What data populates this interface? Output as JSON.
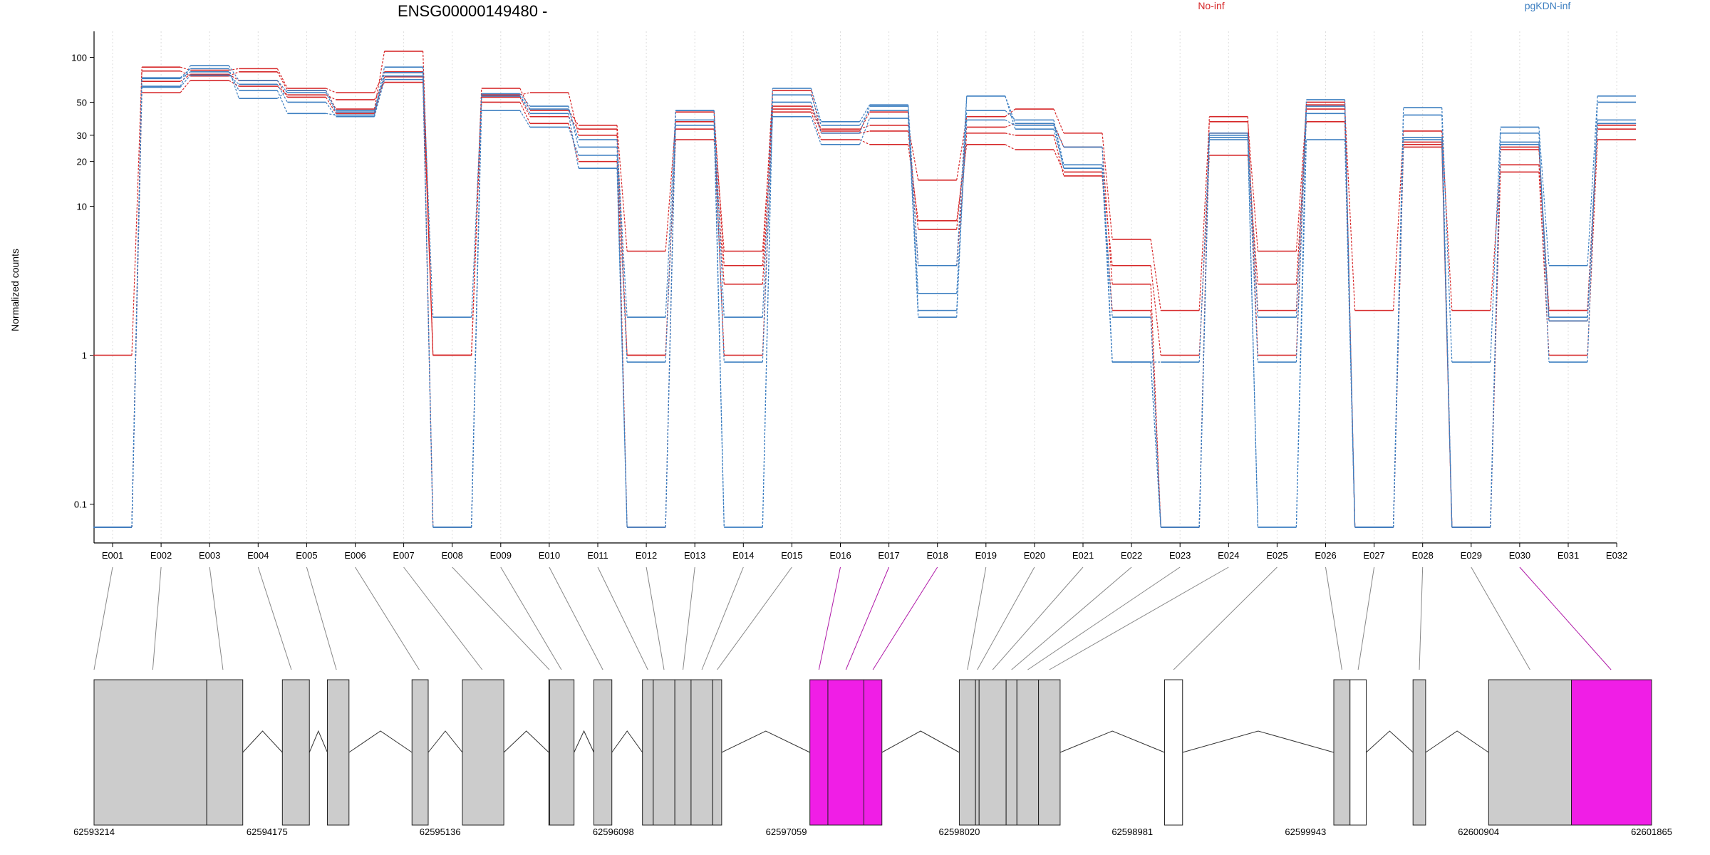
{
  "chart_data": {
    "type": "line",
    "title": "ENSG00000149480 -",
    "ylabel": "Normalized counts",
    "ylim": [
      0.07,
      140
    ],
    "yscale": "log",
    "yticks": [
      "0.1",
      "1",
      "10",
      "20",
      "30",
      "50",
      "100"
    ],
    "grid": "vertical dotted",
    "legend_position": "top-right",
    "categories": [
      "E001",
      "E002",
      "E003",
      "E004",
      "E005",
      "E006",
      "E007",
      "E008",
      "E009",
      "E010",
      "E011",
      "E012",
      "E013",
      "E014",
      "E015",
      "E016",
      "E017",
      "E018",
      "E019",
      "E020",
      "E021",
      "E022",
      "E023",
      "E024",
      "E025",
      "E026",
      "E027",
      "E028",
      "E029",
      "E030",
      "E031",
      "E032"
    ],
    "groups": [
      {
        "name": "No-inf",
        "color": "#d62728",
        "series": [
          {
            "values": [
              1,
              81,
              75,
              80,
              60,
              45,
              110,
              1,
              62,
              44,
              35,
              5,
              37,
              5,
              47,
              33,
              35,
              15,
              40,
              45,
              31,
              6,
              2,
              37,
              5,
              45,
              2,
              32,
              2,
              19,
              2,
              35
            ]
          },
          {
            "values": [
              0.07,
              58,
              70,
              64,
              56,
              52,
              68,
              1,
              56,
              58,
              30,
              1,
              28,
              3,
              43,
              28,
              26,
              8,
              26,
              24,
              17,
              4,
              1,
              22,
              3,
              37,
              0.07,
              25,
              0.07,
              17,
              1,
              28
            ]
          },
          {
            "values": [
              0.07,
              86,
              82,
              84,
              62,
              58,
              80,
              0.07,
              54,
              40,
              33,
              0.07,
              43,
              4,
              60,
              31,
              32,
              7,
              34,
              36,
              25,
              3,
              0.07,
              31,
              2,
              48,
              0.07,
              27,
              0.07,
              25,
              1.7,
              33
            ]
          },
          {
            "values": [
              0.07,
              69,
              77,
              70,
              54,
              42,
              74,
              1,
              50,
              36,
              20,
              1,
              33,
              1,
              45,
              32,
              43,
              4,
              31,
              30,
              16,
              2,
              0.07,
              40,
              1,
              50,
              0.07,
              26,
              0.07,
              24,
              2,
              36
            ]
          }
        ]
      },
      {
        "name": "pgKDN-inf",
        "color": "#3d7fc1",
        "series": [
          {
            "values": [
              0.07,
              64,
              88,
              70,
              58,
              43,
              86,
              1.8,
              55,
              45,
              28,
              1.8,
              44,
              1.8,
              62,
              37,
              48,
              4,
              55,
              36,
              18,
              1.8,
              0.07,
              31,
              1.8,
              52,
              0.07,
              46,
              0.9,
              34,
              4,
              55
            ]
          },
          {
            "values": [
              0.07,
              72,
              80,
              60,
              42,
              41,
              79,
              0.07,
              44,
              34,
              22,
              0.07,
              38,
              0.9,
              40,
              26,
              39,
              2.6,
              38,
              35,
              25,
              0.9,
              0.07,
              29,
              0.9,
              42,
              0.07,
              41,
              0.07,
              31,
              0.9,
              50
            ]
          },
          {
            "values": [
              0.07,
              73,
              84,
              53,
              60,
              44,
              75,
              0.07,
              57,
              47,
              25,
              0.9,
              35,
              0.07,
              50,
              31,
              47,
              2,
              44,
              38,
              19,
              0.9,
              0.9,
              30,
              0.07,
              47,
              0.07,
              29,
              0.07,
              27,
              1.8,
              38
            ]
          },
          {
            "values": [
              0.07,
              63,
              76,
              66,
              50,
              40,
              71,
              0.07,
              55,
              42,
              18,
              0.07,
              44,
              0.07,
              56,
              35,
              44,
              1.8,
              55,
              33,
              18,
              0.9,
              0.07,
              28,
              0.07,
              28,
              0.07,
              28,
              0.07,
              26,
              1.7,
              36
            ]
          }
        ]
      }
    ],
    "gene_model": {
      "coordinate_labels": [
        "62593214",
        "62594175",
        "62595136",
        "62596098",
        "62597059",
        "62598020",
        "62598981",
        "62599943",
        "62600904",
        "62601865"
      ],
      "exons": [
        {
          "start": 62593214,
          "end": 62593840,
          "fill": "#cccccc"
        },
        {
          "start": 62593840,
          "end": 62594040,
          "fill": "#cccccc"
        },
        {
          "start": 62594260,
          "end": 62594410,
          "fill": "#cccccc"
        },
        {
          "start": 62594510,
          "end": 62594630,
          "fill": "#cccccc"
        },
        {
          "start": 62594980,
          "end": 62595070,
          "fill": "#cccccc"
        },
        {
          "start": 62595260,
          "end": 62595490,
          "fill": "#cccccc"
        },
        {
          "start": 62595740,
          "end": 62595745,
          "fill": "#cccccc"
        },
        {
          "start": 62595745,
          "end": 62595880,
          "fill": "#cccccc"
        },
        {
          "start": 62595990,
          "end": 62596090,
          "fill": "#cccccc"
        },
        {
          "start": 62596260,
          "end": 62596320,
          "fill": "#cccccc"
        },
        {
          "start": 62596320,
          "end": 62596440,
          "fill": "#cccccc"
        },
        {
          "start": 62596440,
          "end": 62596530,
          "fill": "#cccccc"
        },
        {
          "start": 62596530,
          "end": 62596650,
          "fill": "#cccccc"
        },
        {
          "start": 62596650,
          "end": 62596700,
          "fill": "#cccccc"
        },
        {
          "start": 62597190,
          "end": 62597290,
          "fill": "#f01ee6"
        },
        {
          "start": 62597290,
          "end": 62597490,
          "fill": "#f01ee6"
        },
        {
          "start": 62597490,
          "end": 62597590,
          "fill": "#f01ee6"
        },
        {
          "start": 62598020,
          "end": 62598110,
          "fill": "#cccccc"
        },
        {
          "start": 62598110,
          "end": 62598130,
          "fill": "#cccccc"
        },
        {
          "start": 62598130,
          "end": 62598280,
          "fill": "#cccccc"
        },
        {
          "start": 62598280,
          "end": 62598340,
          "fill": "#cccccc"
        },
        {
          "start": 62598340,
          "end": 62598460,
          "fill": "#cccccc"
        },
        {
          "start": 62598460,
          "end": 62598580,
          "fill": "#cccccc"
        },
        {
          "start": 62599160,
          "end": 62599260,
          "fill": "#ffffff"
        },
        {
          "start": 62600100,
          "end": 62600190,
          "fill": "#cccccc"
        },
        {
          "start": 62600190,
          "end": 62600280,
          "fill": "#ffffff"
        },
        {
          "start": 62600540,
          "end": 62600610,
          "fill": "#cccccc"
        },
        {
          "start": 62600960,
          "end": 62601420,
          "fill": "#cccccc"
        },
        {
          "start": 62601420,
          "end": 62601865,
          "fill": "#f01ee6"
        }
      ],
      "bin_links": [
        {
          "bin": "E001",
          "pos": 62593214,
          "color": "#888888"
        },
        {
          "bin": "E002",
          "pos": 62593540,
          "color": "#888888"
        },
        {
          "bin": "E003",
          "pos": 62593930,
          "color": "#888888"
        },
        {
          "bin": "E004",
          "pos": 62594310,
          "color": "#888888"
        },
        {
          "bin": "E005",
          "pos": 62594560,
          "color": "#888888"
        },
        {
          "bin": "E006",
          "pos": 62595020,
          "color": "#888888"
        },
        {
          "bin": "E007",
          "pos": 62595370,
          "color": "#888888"
        },
        {
          "bin": "E008",
          "pos": 62595743,
          "color": "#888888"
        },
        {
          "bin": "E009",
          "pos": 62595810,
          "color": "#888888"
        },
        {
          "bin": "E010",
          "pos": 62596040,
          "color": "#888888"
        },
        {
          "bin": "E011",
          "pos": 62596290,
          "color": "#888888"
        },
        {
          "bin": "E012",
          "pos": 62596380,
          "color": "#888888"
        },
        {
          "bin": "E013",
          "pos": 62596485,
          "color": "#888888"
        },
        {
          "bin": "E014",
          "pos": 62596590,
          "color": "#888888"
        },
        {
          "bin": "E015",
          "pos": 62596675,
          "color": "#888888"
        },
        {
          "bin": "E016",
          "pos": 62597240,
          "color": "#b01aa8"
        },
        {
          "bin": "E017",
          "pos": 62597390,
          "color": "#b01aa8"
        },
        {
          "bin": "E018",
          "pos": 62597540,
          "color": "#b01aa8"
        },
        {
          "bin": "E019",
          "pos": 62598065,
          "color": "#888888"
        },
        {
          "bin": "E020",
          "pos": 62598120,
          "color": "#888888"
        },
        {
          "bin": "E021",
          "pos": 62598205,
          "color": "#888888"
        },
        {
          "bin": "E022",
          "pos": 62598310,
          "color": "#888888"
        },
        {
          "bin": "E023",
          "pos": 62598400,
          "color": "#888888"
        },
        {
          "bin": "E024",
          "pos": 62598520,
          "color": "#888888"
        },
        {
          "bin": "E025",
          "pos": 62599210,
          "color": "#888888"
        },
        {
          "bin": "E026",
          "pos": 62600145,
          "color": "#888888"
        },
        {
          "bin": "E027",
          "pos": 62600235,
          "color": "#888888"
        },
        {
          "bin": "E028",
          "pos": 62600575,
          "color": "#888888"
        },
        {
          "bin": "E029",
          "pos": 62601190,
          "color": "#888888"
        },
        {
          "bin": "E030",
          "pos": 62601640,
          "color": "#b01aa8"
        }
      ]
    }
  }
}
